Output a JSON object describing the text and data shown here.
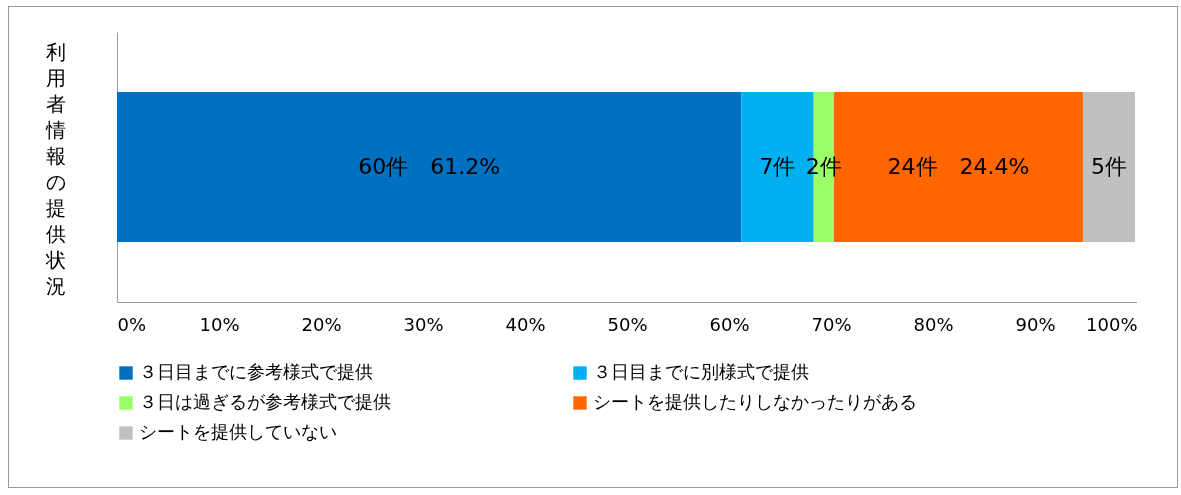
{
  "chart_data": {
    "type": "bar",
    "orientation": "horizontal",
    "stacked": true,
    "ylabel": "利用者情報の提供状況",
    "categories": [
      null
    ],
    "xlim": [
      0,
      100
    ],
    "xticks": [
      {
        "value": 0,
        "label": "0%"
      },
      {
        "value": 10,
        "label": "10%"
      },
      {
        "value": 20,
        "label": "20%"
      },
      {
        "value": 30,
        "label": "30%"
      },
      {
        "value": 40,
        "label": "40%"
      },
      {
        "value": 50,
        "label": "50%"
      },
      {
        "value": 60,
        "label": "60%"
      },
      {
        "value": 70,
        "label": "70%"
      },
      {
        "value": 80,
        "label": "80%"
      },
      {
        "value": 90,
        "label": "90%"
      },
      {
        "value": 100,
        "label": "100%"
      }
    ],
    "grid": false,
    "legend": "bottom",
    "series": [
      {
        "name": "３日目までに参考様式で提供",
        "color": "#0070c0",
        "values": [
          61.2
        ],
        "value_labels": [
          "60件　61.2%"
        ]
      },
      {
        "name": "３日目までに別様式で提供",
        "color": "#00b0f0",
        "values": [
          7.1
        ],
        "value_labels": [
          "7件"
        ]
      },
      {
        "name": "３日は過ぎるが参考様式で提供",
        "color": "#99ff66",
        "values": [
          2.0
        ],
        "value_labels": [
          "2件"
        ]
      },
      {
        "name": "シートを提供したりしなかったりがある",
        "color": "#ff6600",
        "values": [
          24.4
        ],
        "value_labels": [
          "24件　24.4%"
        ]
      },
      {
        "name": "シートを提供していない",
        "color": "#c0c0c0",
        "values": [
          5.1
        ],
        "value_labels": [
          "5件"
        ]
      }
    ]
  }
}
